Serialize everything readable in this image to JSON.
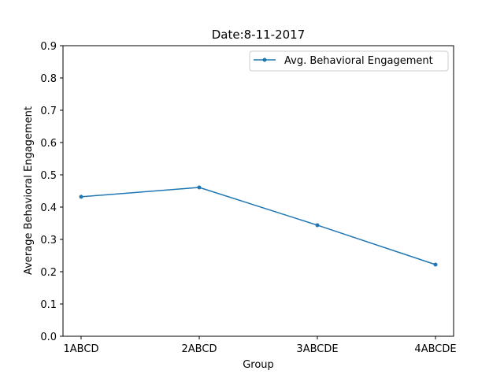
{
  "chart_data": {
    "type": "line",
    "title": "Date:8-11-2017",
    "xlabel": "Group",
    "ylabel": "Average Behavioral Engagement",
    "categories": [
      "1ABCD",
      "2ABCD",
      "3ABCDE",
      "4ABCDE"
    ],
    "series": [
      {
        "name": "Avg. Behavioral Engagement",
        "values": [
          0.432,
          0.461,
          0.344,
          0.222
        ],
        "color": "#1f77b4",
        "marker": "point"
      }
    ],
    "ylim": [
      0,
      0.9
    ],
    "yticks": [
      "0.0",
      "0.1",
      "0.2",
      "0.3",
      "0.4",
      "0.5",
      "0.6",
      "0.7",
      "0.8",
      "0.9"
    ],
    "grid": false,
    "legend_position": "top-right"
  }
}
